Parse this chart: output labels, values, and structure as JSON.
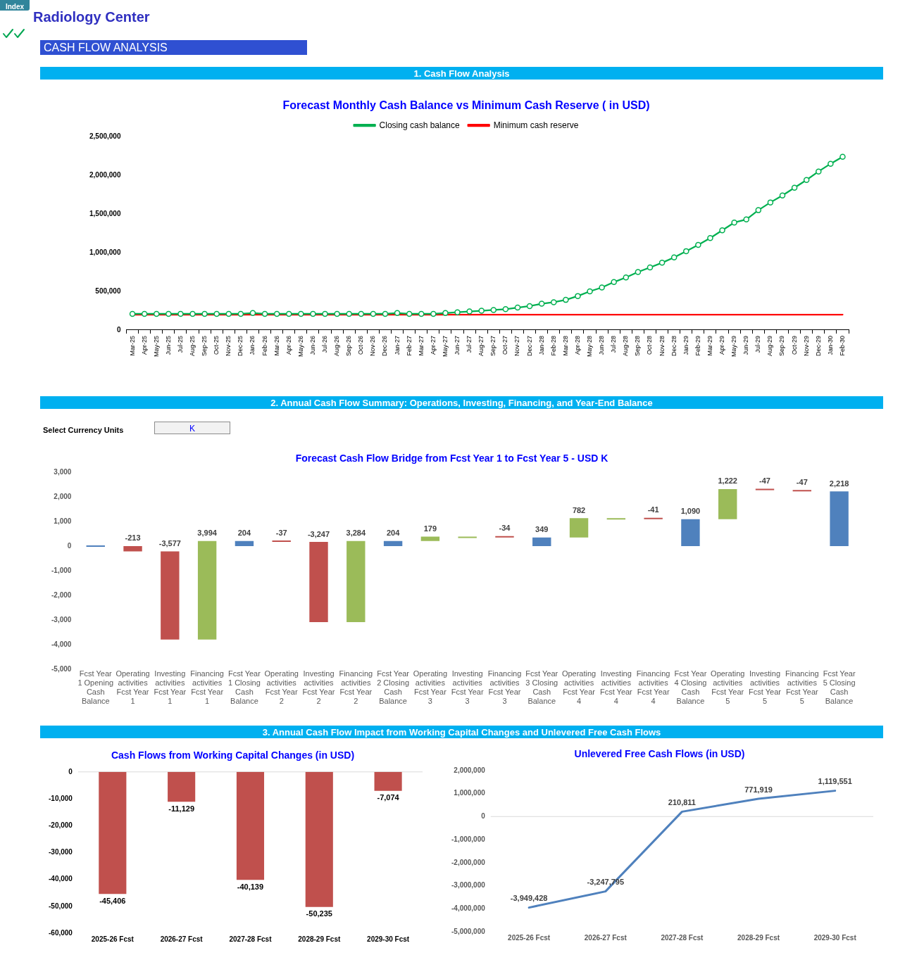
{
  "chart_data": [
    {
      "type": "other",
      "title": "Radiology Center",
      "annotations": [
        "Index",
        "CASH FLOW ANALYSIS"
      ]
    },
    {
      "type": "line",
      "title": "Forecast Monthly Cash Balance vs Minimum Cash Reserve ( in USD)",
      "annotations": [
        "1. Cash Flow Analysis"
      ],
      "categories": [
        "Mar-25",
        "Apr-25",
        "May-25",
        "Jun-25",
        "Jul-25",
        "Aug-25",
        "Sep-25",
        "Oct-25",
        "Nov-25",
        "Dec-25",
        "Jan-26",
        "Feb-26",
        "Mar-26",
        "Apr-26",
        "May-26",
        "Jun-26",
        "Jul-26",
        "Aug-26",
        "Sep-26",
        "Oct-26",
        "Nov-26",
        "Dec-26",
        "Jan-27",
        "Feb-27",
        "Mar-27",
        "Apr-27",
        "May-27",
        "Jun-27",
        "Jul-27",
        "Aug-27",
        "Sep-27",
        "Oct-27",
        "Nov-27",
        "Dec-27",
        "Jan-28",
        "Feb-28",
        "Mar-28",
        "Apr-28",
        "May-28",
        "Jun-28",
        "Jul-28",
        "Aug-28",
        "Sep-28",
        "Oct-28",
        "Nov-28",
        "Dec-28",
        "Jan-29",
        "Feb-29",
        "Mar-29",
        "Apr-29",
        "May-29",
        "Jun-29",
        "Jul-29",
        "Aug-29",
        "Sep-29",
        "Oct-29",
        "Nov-29",
        "Dec-29",
        "Jan-30",
        "Feb-30"
      ],
      "series": [
        {
          "name": "Closing cash balance",
          "color": "#00b050",
          "marker": "circle",
          "values": [
            210000,
            210000,
            210000,
            210000,
            210000,
            210000,
            210000,
            210000,
            210000,
            210000,
            220000,
            210000,
            210000,
            210000,
            210000,
            210000,
            210000,
            210000,
            210000,
            210000,
            210000,
            210000,
            220000,
            210000,
            210000,
            210000,
            220000,
            230000,
            240000,
            250000,
            260000,
            270000,
            290000,
            310000,
            340000,
            360000,
            390000,
            440000,
            500000,
            550000,
            620000,
            680000,
            750000,
            810000,
            870000,
            940000,
            1020000,
            1100000,
            1190000,
            1290000,
            1390000,
            1430000,
            1550000,
            1650000,
            1740000,
            1840000,
            1940000,
            2050000,
            2150000,
            2240000
          ]
        },
        {
          "name": "Minimum cash reserve",
          "color": "#ff0000",
          "marker": "none",
          "values": [
            200000,
            200000,
            200000,
            200000,
            200000,
            200000,
            200000,
            200000,
            200000,
            200000,
            200000,
            200000,
            200000,
            200000,
            200000,
            200000,
            200000,
            200000,
            200000,
            200000,
            200000,
            200000,
            200000,
            200000,
            200000,
            200000,
            200000,
            200000,
            200000,
            200000,
            200000,
            200000,
            200000,
            200000,
            200000,
            200000,
            200000,
            200000,
            200000,
            200000,
            200000,
            200000,
            200000,
            200000,
            200000,
            200000,
            200000,
            200000,
            200000,
            200000,
            200000,
            200000,
            200000,
            200000,
            200000,
            200000,
            200000,
            200000,
            200000,
            200000
          ]
        }
      ],
      "ylim": [
        0,
        2500000
      ],
      "yticks": [
        {
          "value": 0,
          "label": "0"
        },
        {
          "value": 500000,
          "label": "500,000"
        },
        {
          "value": 1000000,
          "label": "1,000,000"
        },
        {
          "value": 1500000,
          "label": "1,500,000"
        },
        {
          "value": 2000000,
          "label": "2,000,000"
        },
        {
          "value": 2500000,
          "label": "2,500,000"
        }
      ],
      "legend": "top"
    },
    {
      "type": "bar",
      "title": "Forecast Cash Flow Bridge from Fcst Year 1 to Fcst Year 5 - USD K",
      "annotations": [
        "2. Annual Cash Flow Summary: Operations, Investing, Financing, and Year-End Balance",
        "Select Currency Units",
        "K"
      ],
      "categories": [
        "Fcst Year 1 Opening Cash Balance",
        "Operating activities Fcst Year 1",
        "Investing activities Fcst Year 1",
        "Financing activities Fcst Year 1",
        "Fcst Year 1 Closing Cash Balance",
        "Operating activities Fcst Year 2",
        "Investing activities Fcst Year 2",
        "Financing activities Fcst Year 2",
        "Fcst Year 2 Closing Cash Balance",
        "Operating activities Fcst Year 3",
        "Investing activities Fcst Year 3",
        "Financing activities Fcst Year 3",
        "Fcst Year 3 Closing Cash Balance",
        "Operating activities Fcst Year 4",
        "Investing activities Fcst Year 4",
        "Financing activities Fcst Year 4",
        "Fcst Year 4 Closing Cash Balance",
        "Operating activities Fcst Year 5",
        "Investing activities Fcst Year 5",
        "Financing activities Fcst Year 5",
        "Fcst Year 5 Closing Cash Balance"
      ],
      "values": [
        0,
        -213,
        -3577,
        3994,
        204,
        -37,
        -3247,
        3284,
        204,
        179,
        0,
        -34,
        349,
        782,
        0,
        -41,
        1090,
        1222,
        -47,
        -47,
        2218
      ],
      "base": [
        0,
        0,
        -213,
        -3790,
        0,
        204,
        167,
        -3080,
        0,
        204,
        383,
        383,
        0,
        349,
        1131,
        1131,
        0,
        1090,
        2312,
        2265,
        0
      ],
      "colors": [
        "#4f81bd",
        "#c0504d",
        "#c0504d",
        "#9bbb59",
        "#4f81bd",
        "#c0504d",
        "#c0504d",
        "#9bbb59",
        "#4f81bd",
        "#9bbb59",
        "#9bbb59",
        "#c0504d",
        "#4f81bd",
        "#9bbb59",
        "#9bbb59",
        "#c0504d",
        "#4f81bd",
        "#9bbb59",
        "#c0504d",
        "#c0504d",
        "#4f81bd"
      ],
      "value_labels": [
        null,
        "-213",
        "-3,577",
        "3,994",
        "204",
        "-37",
        "-3,247",
        "3,284",
        "204",
        "179",
        null,
        "-34",
        "349",
        "782",
        null,
        "-41",
        "1,090",
        "1,222",
        "-47",
        "-47",
        "2,218"
      ],
      "ylim": [
        -5000,
        3000
      ],
      "yticks": [
        {
          "value": -5000,
          "label": "-5,000"
        },
        {
          "value": -4000,
          "label": "-4,000"
        },
        {
          "value": -3000,
          "label": "-3,000"
        },
        {
          "value": -2000,
          "label": "-2,000"
        },
        {
          "value": -1000,
          "label": "-1,000"
        },
        {
          "value": 0,
          "label": "0"
        },
        {
          "value": 1000,
          "label": "1,000"
        },
        {
          "value": 2000,
          "label": "2,000"
        },
        {
          "value": 3000,
          "label": "3,000"
        }
      ]
    },
    {
      "type": "bar",
      "title": "Cash Flows from Working Capital Changes (in USD)",
      "annotations": [
        "3. Annual Cash Flow Impact from Working Capital Changes and Unlevered Free Cash Flows"
      ],
      "categories": [
        "2025-26 Fcst",
        "2026-27 Fcst",
        "2027-28 Fcst",
        "2028-29 Fcst",
        "2029-30 Fcst"
      ],
      "values": [
        -45406,
        -11129,
        -40139,
        -50235,
        -7074
      ],
      "color": "#c0504d",
      "value_labels": [
        "-45,406",
        "-11,129",
        "-40,139",
        "-50,235",
        "-7,074"
      ],
      "ylim": [
        -60000,
        0
      ],
      "yticks": [
        {
          "value": -60000,
          "label": "-60,000"
        },
        {
          "value": -50000,
          "label": "-50,000"
        },
        {
          "value": -40000,
          "label": "-40,000"
        },
        {
          "value": -30000,
          "label": "-30,000"
        },
        {
          "value": -20000,
          "label": "-20,000"
        },
        {
          "value": -10000,
          "label": "-10,000"
        },
        {
          "value": 0,
          "label": "0"
        }
      ],
      "ref_lines": [
        {
          "axis": "y",
          "value": 0,
          "color": "#d9d9d9"
        }
      ]
    },
    {
      "type": "line",
      "title": "Unlevered Free Cash Flows (in USD)",
      "categories": [
        "2025-26 Fcst",
        "2026-27 Fcst",
        "2027-28 Fcst",
        "2028-29 Fcst",
        "2029-30 Fcst"
      ],
      "series": [
        {
          "color": "#4f81bd",
          "values": [
            -3949428,
            -3247795,
            210811,
            771919,
            1119551
          ],
          "value_labels": [
            "-3,949,428",
            "-3,247,795",
            "210,811",
            "771,919",
            "1,119,551"
          ]
        }
      ],
      "marker": "none",
      "ylim": [
        -5000000,
        2000000
      ],
      "yticks": [
        {
          "value": -5000000,
          "label": "-5,000,000"
        },
        {
          "value": -4000000,
          "label": "-4,000,000"
        },
        {
          "value": -3000000,
          "label": "-3,000,000"
        },
        {
          "value": -2000000,
          "label": "-2,000,000"
        },
        {
          "value": -1000000,
          "label": "-1,000,000"
        },
        {
          "value": 0,
          "label": "0"
        },
        {
          "value": 1000000,
          "label": "1,000,000"
        },
        {
          "value": 2000000,
          "label": "2,000,000"
        }
      ],
      "ref_lines": [
        {
          "axis": "y",
          "value": 0,
          "color": "#d9d9d9"
        }
      ]
    }
  ]
}
